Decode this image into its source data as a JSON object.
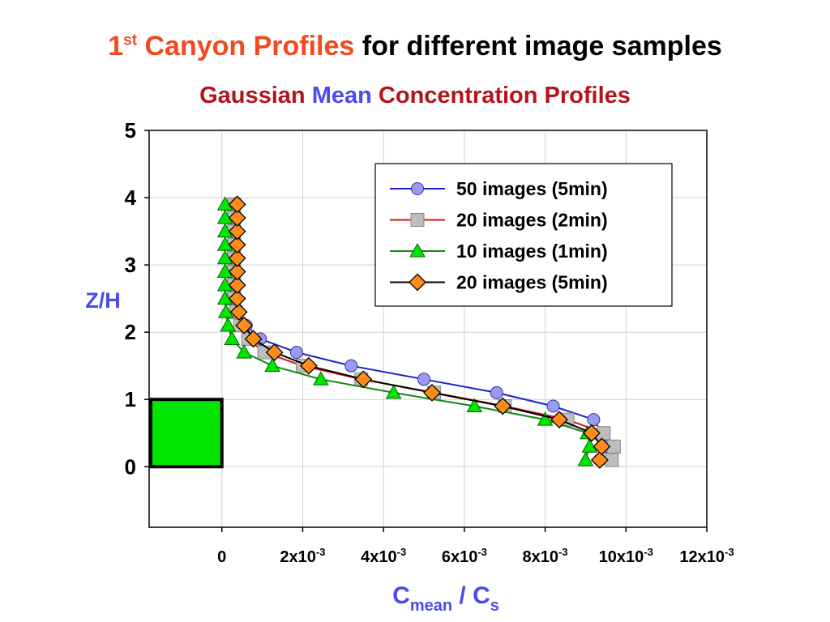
{
  "slide": {
    "title_sup_base": "1",
    "title_sup": "st",
    "title_orange": " Canyon Profiles",
    "title_rest": " for different image samples",
    "subtitle_a": "Gaussian ",
    "subtitle_b": "Mean",
    "subtitle_c": " Concentration Profiles"
  },
  "colors": {
    "accent_orange": "#f04a1e",
    "subtitle_red": "#b3141b",
    "axis_label_blue": "#4a4aef",
    "building_green": "#00e600"
  },
  "chart_data": {
    "type": "line",
    "title": "",
    "xlabel": {
      "base": "C",
      "sub": "mean",
      "mid": " / C",
      "sub2": "s"
    },
    "ylabel": "Z/H",
    "xlim": [
      -0.0018,
      0.012
    ],
    "ylim": [
      -0.9,
      5
    ],
    "grid": true,
    "legend_position": "top-right",
    "yticks": [
      {
        "value": 0,
        "label": "0"
      },
      {
        "value": 1,
        "label": "1"
      },
      {
        "value": 2,
        "label": "2"
      },
      {
        "value": 3,
        "label": "3"
      },
      {
        "value": 4,
        "label": "4"
      },
      {
        "value": 5,
        "label": "5"
      }
    ],
    "xticks": [
      {
        "value": 0,
        "base": "0",
        "exp": ""
      },
      {
        "value": 0.002,
        "base": "2x10",
        "exp": "-3"
      },
      {
        "value": 0.004,
        "base": "4x10",
        "exp": "-3"
      },
      {
        "value": 0.006,
        "base": "6x10",
        "exp": "-3"
      },
      {
        "value": 0.008,
        "base": "8x10",
        "exp": "-3"
      },
      {
        "value": 0.01,
        "base": "10x10",
        "exp": "-3"
      },
      {
        "value": 0.012,
        "base": "12x10",
        "exp": "-3"
      }
    ],
    "building": {
      "x": [
        -0.0018,
        0.0
      ],
      "y": [
        0,
        1
      ],
      "color": "#00e600"
    },
    "series": [
      {
        "name": "50 images (5min)",
        "line_color": "#1f1fd0",
        "marker": "circle",
        "fill": "#9a9af0",
        "x": [
          0.00935,
          0.0095,
          0.0094,
          0.0092,
          0.0082,
          0.0068,
          0.005,
          0.0032,
          0.00185,
          0.00095,
          0.0006,
          0.0004,
          0.0003,
          0.00028,
          0.00028,
          0.00028,
          0.00028,
          0.00028,
          0.00028,
          0.00028,
          0.00028
        ],
        "y": [
          0.1,
          0.3,
          0.5,
          0.7,
          0.9,
          1.1,
          1.3,
          1.5,
          1.7,
          1.9,
          2.1,
          2.3,
          2.5,
          2.7,
          2.9,
          3.1,
          3.3,
          3.5,
          3.7,
          3.9,
          3.9
        ]
      },
      {
        "name": "20 images (2min)",
        "line_color": "#e01010",
        "marker": "square",
        "fill": "#bdbdbd",
        "x": [
          0.00965,
          0.0097,
          0.00945,
          0.00855,
          0.007,
          0.00525,
          0.00345,
          0.002,
          0.00105,
          0.00065,
          0.00045,
          0.00035,
          0.0003,
          0.0003,
          0.0003,
          0.0003,
          0.0003,
          0.0003,
          0.0003,
          0.0003
        ],
        "y": [
          0.1,
          0.3,
          0.5,
          0.7,
          0.9,
          1.1,
          1.3,
          1.5,
          1.7,
          1.9,
          2.1,
          2.3,
          2.5,
          2.7,
          2.9,
          3.1,
          3.3,
          3.5,
          3.7,
          3.9
        ]
      },
      {
        "name": "10 images (1min)",
        "line_color": "#118811",
        "marker": "triangle",
        "fill": "#00e600",
        "x": [
          0.009,
          0.0091,
          0.00905,
          0.008,
          0.00625,
          0.00425,
          0.00245,
          0.00125,
          0.00055,
          0.00025,
          0.00015,
          0.0001,
          8e-05,
          8e-05,
          8e-05,
          8e-05,
          8e-05,
          8e-05,
          8e-05,
          8e-05
        ],
        "y": [
          0.1,
          0.3,
          0.5,
          0.7,
          0.9,
          1.1,
          1.3,
          1.5,
          1.7,
          1.9,
          2.1,
          2.3,
          2.5,
          2.7,
          2.9,
          3.1,
          3.3,
          3.5,
          3.7,
          3.9
        ]
      },
      {
        "name": "20 images (5min)",
        "line_color": "#000000",
        "marker": "diamond",
        "fill": "#ff8c1a",
        "x": [
          0.00935,
          0.0094,
          0.00915,
          0.00835,
          0.00695,
          0.0052,
          0.0035,
          0.00215,
          0.0013,
          0.00078,
          0.00055,
          0.00042,
          0.00038,
          0.00038,
          0.00038,
          0.00038,
          0.00038,
          0.00038,
          0.00038,
          0.00038
        ],
        "y": [
          0.1,
          0.3,
          0.5,
          0.7,
          0.9,
          1.1,
          1.3,
          1.5,
          1.7,
          1.9,
          2.1,
          2.3,
          2.5,
          2.7,
          2.9,
          3.1,
          3.3,
          3.5,
          3.7,
          3.9
        ]
      }
    ]
  }
}
